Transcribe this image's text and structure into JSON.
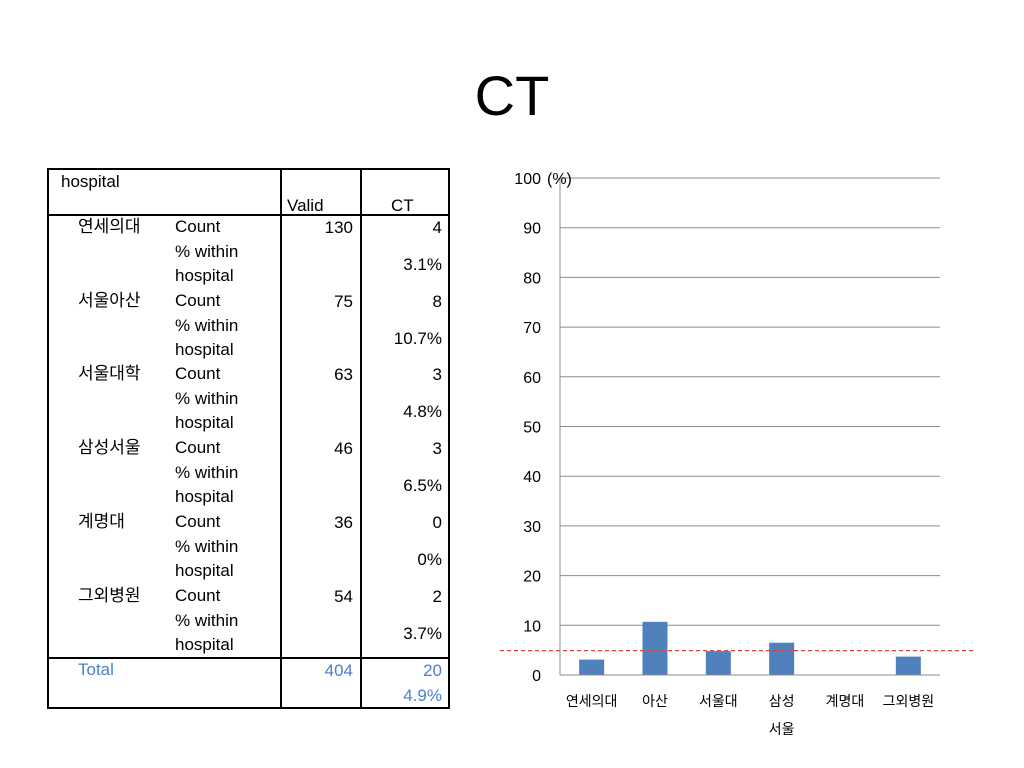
{
  "slide": {
    "title": "CT"
  },
  "table": {
    "header": {
      "row_label": "hospital",
      "col_valid": "Valid",
      "col_ct": "CT"
    },
    "rows": [
      {
        "name": "연세의대",
        "count_label": "Count",
        "pct_label_1": "% within",
        "pct_label_2": "hospital",
        "valid": "130",
        "ct_count": "4",
        "ct_pct": "3.1%"
      },
      {
        "name": "서울아산",
        "count_label": "Count",
        "pct_label_1": "% within",
        "pct_label_2": "hospital",
        "valid": "75",
        "ct_count": "8",
        "ct_pct": "10.7%"
      },
      {
        "name": "서울대학",
        "count_label": "Count",
        "pct_label_1": "% within",
        "pct_label_2": "hospital",
        "valid": "63",
        "ct_count": "3",
        "ct_pct": "4.8%"
      },
      {
        "name": "삼성서울",
        "count_label": "Count",
        "pct_label_1": "% within",
        "pct_label_2": "hospital",
        "valid": "46",
        "ct_count": "3",
        "ct_pct": "6.5%"
      },
      {
        "name": "계명대",
        "count_label": "Count",
        "pct_label_1": "% within",
        "pct_label_2": "hospital",
        "valid": "36",
        "ct_count": "0",
        "ct_pct": "0%"
      },
      {
        "name": "그외병원",
        "count_label": "Count",
        "pct_label_1": "% within",
        "pct_label_2": "hospital",
        "valid": "54",
        "ct_count": "2",
        "ct_pct": "3.7%"
      }
    ],
    "total": {
      "label": "Total",
      "valid": "404",
      "ct_count": "20",
      "ct_pct": "4.9%"
    }
  },
  "colors": {
    "bar": "#4f81bd",
    "reference_line": "#e0413a",
    "gridline": "#8c8c8c",
    "total_text": "#4a7fcb"
  },
  "chart_data": {
    "type": "bar",
    "title": "",
    "ylabel": "(%)",
    "xlabel": "",
    "categories": [
      "연세의대",
      "아산",
      "서울대",
      "삼성\n서울",
      "계명대",
      "그외병원"
    ],
    "values": [
      3.1,
      10.7,
      4.8,
      6.5,
      0,
      3.7
    ],
    "ylim": [
      0,
      100
    ],
    "yticks": [
      0,
      10,
      20,
      30,
      40,
      50,
      60,
      70,
      80,
      90,
      100
    ],
    "reference_line": {
      "value": 4.9,
      "style": "dashed"
    },
    "grid": true,
    "legend": "none"
  }
}
